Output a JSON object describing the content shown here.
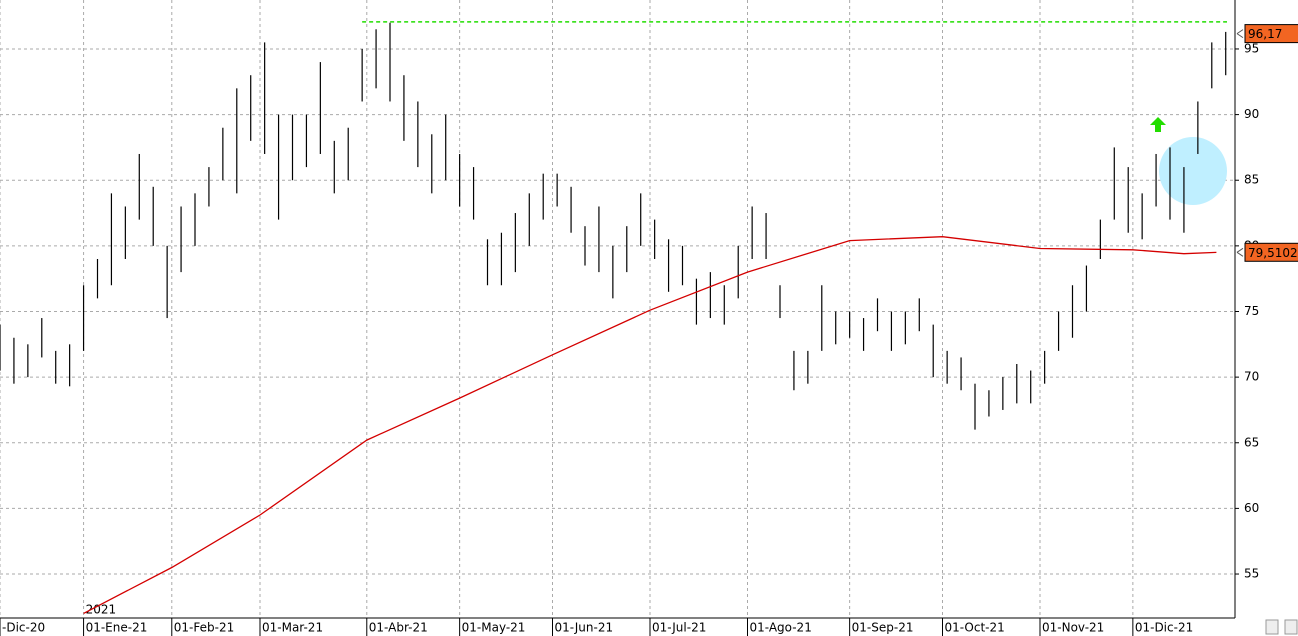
{
  "chart_data": {
    "type": "ohlc",
    "year_label": "2021",
    "xlim": [
      -18,
      248
    ],
    "ylim": [
      51.65,
      98.73
    ],
    "yticks": [
      55,
      60,
      65,
      70,
      75,
      80,
      85,
      90,
      95
    ],
    "xticks": [
      {
        "value": -18,
        "label": "-Dic-20"
      },
      {
        "value": 0,
        "label": "01-Ene-21"
      },
      {
        "value": 19,
        "label": "01-Feb-21"
      },
      {
        "value": 38,
        "label": "01-Mar-21"
      },
      {
        "value": 61,
        "label": "01-Abr-21"
      },
      {
        "value": 81,
        "label": "01-May-21"
      },
      {
        "value": 101,
        "label": "01-Jun-21"
      },
      {
        "value": 122,
        "label": "01-Jul-21"
      },
      {
        "value": 143,
        "label": "01-Ago-21"
      },
      {
        "value": 165,
        "label": "01-Sep-21"
      },
      {
        "value": 185,
        "label": "01-Oct-21"
      },
      {
        "value": 206,
        "label": "01-Nov-21"
      },
      {
        "value": 226,
        "label": "01-Dic-21"
      }
    ],
    "grid": true,
    "bar_color": "#000000",
    "x": [
      -18,
      -15,
      -12,
      -9,
      -6,
      -3,
      0,
      3,
      6,
      9,
      12,
      15,
      18,
      21,
      24,
      27,
      30,
      33,
      36,
      39,
      42,
      45,
      48,
      51,
      54,
      57,
      60,
      63,
      66,
      69,
      72,
      75,
      78,
      81,
      84,
      87,
      90,
      93,
      96,
      99,
      102,
      105,
      108,
      111,
      114,
      117,
      120,
      123,
      126,
      129,
      132,
      135,
      138,
      141,
      144,
      147,
      150,
      153,
      156,
      159,
      162,
      165,
      168,
      171,
      174,
      177,
      180,
      183,
      186,
      189,
      192,
      195,
      198,
      201,
      204,
      207,
      210,
      213,
      216,
      219,
      222,
      225,
      228,
      231,
      234,
      237,
      240,
      243,
      246
    ],
    "low": [
      70.5,
      69.5,
      70,
      71.5,
      69.5,
      69.3,
      72,
      76,
      77,
      79,
      82,
      80,
      74.5,
      78,
      80,
      83,
      85,
      84,
      88,
      87,
      82,
      85,
      86,
      87,
      84,
      85,
      91,
      92,
      91,
      88,
      86,
      84,
      85,
      83,
      82,
      77,
      77,
      78,
      80,
      82,
      83,
      81,
      78.5,
      78,
      76,
      78,
      80,
      79,
      76.5,
      77,
      74,
      74.5,
      74,
      76,
      79,
      79,
      74.5,
      69,
      69.5,
      72,
      72.5,
      73,
      72,
      73.5,
      72,
      72.5,
      73.5,
      70,
      69.5,
      69,
      66,
      67,
      67.5,
      68,
      68,
      69.5,
      72,
      73,
      75,
      79,
      82,
      81,
      80.5,
      83,
      82,
      81,
      87,
      92,
      93
    ],
    "high": [
      74,
      73,
      72.5,
      74.5,
      72,
      72.5,
      77,
      79,
      84,
      83,
      87,
      84.5,
      80,
      83,
      84,
      86,
      89,
      92,
      93,
      95.5,
      90,
      90,
      90,
      94,
      88,
      89,
      95,
      96.5,
      97,
      93,
      91,
      88.5,
      90,
      87,
      86,
      80.5,
      81,
      82.5,
      84,
      85.5,
      85.5,
      84.5,
      81.5,
      83,
      80,
      81.5,
      84,
      82,
      80.5,
      80,
      77.5,
      78,
      77,
      80,
      83,
      82.5,
      77,
      72,
      72,
      77,
      75,
      75,
      74.5,
      76,
      75,
      75,
      76,
      74,
      72,
      71.5,
      69.5,
      69,
      70,
      71,
      70.5,
      72,
      75,
      77,
      78.5,
      82,
      87.5,
      86,
      84,
      87,
      87.5,
      86,
      91,
      95.5,
      96.3
    ],
    "moving_average": {
      "color": "#d40000",
      "x": [
        0,
        19,
        38,
        61,
        81,
        101,
        122,
        143,
        165,
        185,
        206,
        226,
        237,
        244
      ],
      "values": [
        52.0,
        55.5,
        59.5,
        65.2,
        68.4,
        71.7,
        75.1,
        78.0,
        80.4,
        80.7,
        79.8,
        79.7,
        79.4,
        79.5
      ]
    },
    "resistance": {
      "value": 97.06,
      "color": "#22dd00"
    },
    "price_labels": [
      {
        "value": 96.17,
        "label": "96,17"
      },
      {
        "value": 79.5102,
        "label": "79,5102"
      }
    ]
  }
}
